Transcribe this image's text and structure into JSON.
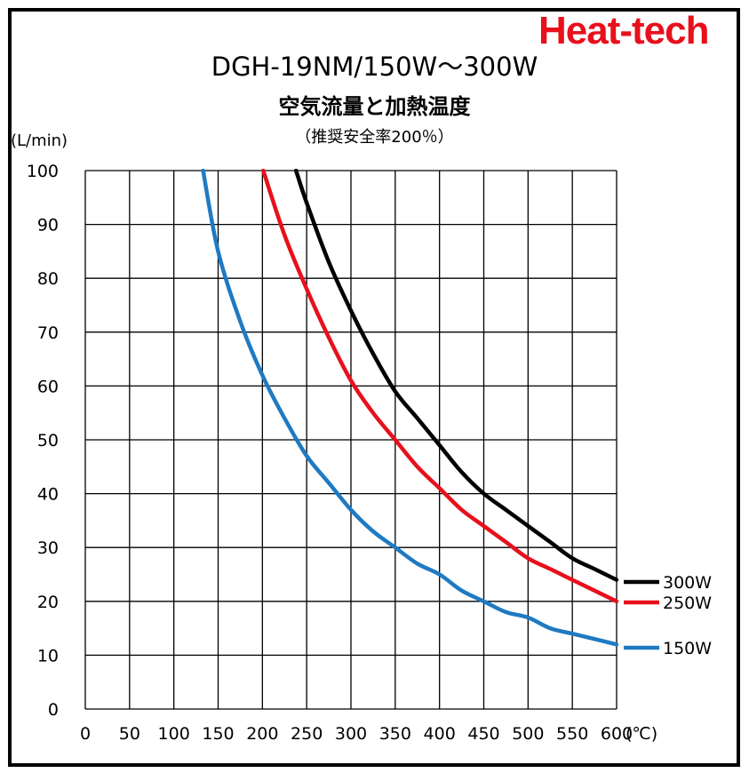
{
  "header": {
    "brand": "Heat-tech",
    "brand_color": "#e8101c",
    "title": "DGH-19NM/150W～300W",
    "subtitle": "空気流量と加熱温度",
    "note": "（推奨安全率200％）",
    "y_unit": "(L/min)"
  },
  "chart_data": {
    "type": "line",
    "title": "空気流量と加熱温度",
    "xlabel": "(℃)",
    "ylabel": "(L/min)",
    "xlim": [
      0,
      600
    ],
    "ylim": [
      0,
      100
    ],
    "x_ticks": [
      "0",
      "50",
      "100",
      "150",
      "200",
      "250",
      "300",
      "350",
      "400",
      "450",
      "500",
      "550",
      "600"
    ],
    "y_ticks": [
      "0",
      "10",
      "20",
      "30",
      "40",
      "50",
      "60",
      "70",
      "80",
      "90",
      "100"
    ],
    "grid": true,
    "legend_position": "right",
    "series": [
      {
        "name": "300W",
        "color": "#000000",
        "x": [
          238,
          250,
          275,
          300,
          325,
          350,
          375,
          400,
          425,
          450,
          475,
          500,
          525,
          550,
          575,
          600
        ],
        "y": [
          100,
          94,
          83,
          74,
          66,
          59,
          54,
          49,
          44,
          40,
          37,
          34,
          31,
          28,
          26,
          24
        ]
      },
      {
        "name": "250W",
        "color": "#e8101c",
        "x": [
          201,
          225,
          250,
          275,
          300,
          325,
          350,
          375,
          400,
          425,
          450,
          475,
          500,
          525,
          550,
          575,
          600
        ],
        "y": [
          100,
          88,
          78,
          69,
          61,
          55,
          50,
          45,
          41,
          37,
          34,
          31,
          28,
          26,
          24,
          22,
          20
        ]
      },
      {
        "name": "150W",
        "color": "#1f7ac2",
        "x": [
          133,
          150,
          175,
          200,
          225,
          250,
          275,
          300,
          325,
          350,
          375,
          400,
          425,
          450,
          475,
          500,
          525,
          550,
          575,
          600
        ],
        "y": [
          100,
          85,
          72,
          62,
          54,
          47,
          42,
          37,
          33,
          30,
          27,
          25,
          22,
          20,
          18,
          17,
          15,
          14,
          13,
          12
        ]
      }
    ]
  }
}
